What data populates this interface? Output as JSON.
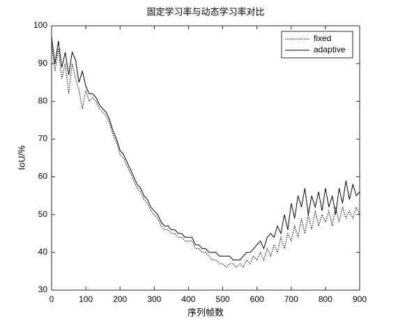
{
  "chart_data": {
    "type": "line",
    "title": "固定学习率与动态学习率对比",
    "xlabel": "序列帧数",
    "ylabel": "IoU/%",
    "x": [
      0,
      10,
      20,
      30,
      40,
      50,
      60,
      70,
      80,
      90,
      100,
      110,
      120,
      130,
      140,
      150,
      160,
      170,
      180,
      190,
      200,
      210,
      220,
      230,
      240,
      250,
      260,
      270,
      280,
      290,
      300,
      310,
      320,
      330,
      340,
      350,
      360,
      370,
      380,
      390,
      400,
      410,
      420,
      430,
      440,
      450,
      460,
      470,
      480,
      490,
      500,
      510,
      520,
      530,
      540,
      550,
      560,
      570,
      580,
      590,
      600,
      610,
      620,
      630,
      640,
      650,
      660,
      670,
      680,
      690,
      700,
      710,
      720,
      730,
      740,
      750,
      760,
      770,
      780,
      790,
      800,
      810,
      820,
      830,
      840,
      850,
      860,
      870,
      880,
      890,
      900
    ],
    "series": [
      {
        "name": "fixed",
        "color": "#000000",
        "dash": "dotted",
        "values": [
          95,
          88,
          94,
          86,
          90,
          82,
          90,
          86,
          83,
          78,
          83,
          80,
          81,
          80,
          78,
          77,
          76,
          74,
          71,
          69,
          66,
          65,
          63,
          61,
          59,
          57,
          56,
          54,
          53,
          51,
          50,
          49,
          47,
          46,
          46,
          45,
          45,
          44,
          44,
          43,
          43,
          43,
          41,
          41,
          40,
          40,
          39,
          38,
          38,
          37,
          37,
          36,
          37,
          37,
          36,
          37,
          36,
          38,
          37,
          39,
          38,
          40,
          38,
          41,
          39,
          42,
          40,
          44,
          41,
          45,
          43,
          47,
          44,
          49,
          45,
          50,
          46,
          51,
          47,
          50,
          48,
          51,
          47,
          52,
          48,
          52,
          49,
          51,
          49,
          52,
          50
        ]
      },
      {
        "name": "adaptive",
        "color": "#000000",
        "dash": "solid",
        "values": [
          97,
          90,
          96,
          89,
          93,
          87,
          93,
          91,
          85,
          88,
          84,
          82,
          82,
          81,
          79,
          78,
          77,
          75,
          72,
          70,
          67,
          66,
          64,
          62,
          60,
          58,
          57,
          55,
          54,
          52,
          51,
          50,
          48,
          47,
          47,
          46,
          46,
          45,
          45,
          44,
          44,
          44,
          42,
          42,
          41,
          41,
          40,
          40,
          40,
          39,
          39,
          39,
          39,
          38,
          38,
          38,
          39,
          40,
          40,
          41,
          42,
          43,
          41,
          44,
          45,
          44,
          47,
          45,
          50,
          46,
          53,
          49,
          55,
          52,
          57,
          50,
          55,
          52,
          56,
          51,
          57,
          52,
          55,
          50,
          57,
          53,
          59,
          54,
          58,
          55,
          56
        ]
      }
    ],
    "xlim": [
      0,
      900
    ],
    "xticks": [
      0,
      100,
      200,
      300,
      400,
      500,
      600,
      700,
      800,
      900
    ],
    "ylim": [
      30,
      100
    ],
    "yticks": [
      30,
      40,
      50,
      60,
      70,
      80,
      90,
      100
    ],
    "legend": "upper right"
  }
}
